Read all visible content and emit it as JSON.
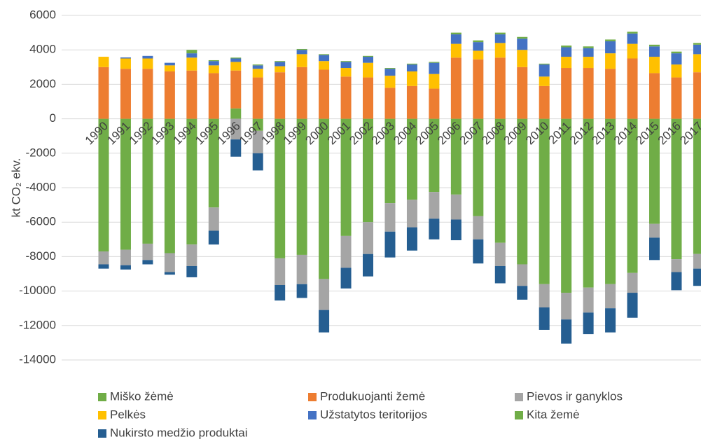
{
  "chart_data": {
    "type": "stacked_bar",
    "y_label": "kt CO₂ ekv.",
    "categories": [
      "1990",
      "1991",
      "1992",
      "1993",
      "1994",
      "1995",
      "1996",
      "1997",
      "1998",
      "1999",
      "2000",
      "2001",
      "2002",
      "2003",
      "2004",
      "2005",
      "2006",
      "2007",
      "2008",
      "2009",
      "2010",
      "2011",
      "2012",
      "2013",
      "2014",
      "2015",
      "2016",
      "2017"
    ],
    "series": [
      {
        "name": "Miško žėmė",
        "color": "#70ad47",
        "values": [
          -7700,
          -7600,
          -7250,
          -7800,
          -7300,
          -5150,
          600,
          -700,
          -8100,
          -7900,
          -9300,
          -6800,
          -6000,
          -4900,
          -4700,
          -4250,
          -4400,
          -5650,
          -7200,
          -8450,
          -9600,
          -10100,
          -9800,
          -9600,
          -8950,
          -6100,
          -8150,
          -7850
        ]
      },
      {
        "name": "Produkuojanti žemė",
        "color": "#ed7d31",
        "values": [
          3000,
          2900,
          2900,
          2750,
          2800,
          2650,
          2200,
          2400,
          2700,
          3000,
          2850,
          2450,
          2400,
          1800,
          1900,
          1750,
          3550,
          3450,
          3550,
          3000,
          1900,
          2950,
          2950,
          2900,
          3500,
          2650,
          2400,
          2700
        ]
      },
      {
        "name": "Pievos ir ganyklos",
        "color": "#a5a5a5",
        "values": [
          -750,
          -900,
          -950,
          -1100,
          -1250,
          -1350,
          -1200,
          -1300,
          -1550,
          -1700,
          -1800,
          -1850,
          -1850,
          -1650,
          -1600,
          -1550,
          -1450,
          -1350,
          -1350,
          -1250,
          -1350,
          -1550,
          -1450,
          -1400,
          -1150,
          -800,
          -750,
          -850
        ]
      },
      {
        "name": "Pelkės",
        "color": "#ffc000",
        "values": [
          600,
          600,
          600,
          350,
          750,
          450,
          500,
          500,
          350,
          750,
          500,
          500,
          850,
          700,
          850,
          850,
          800,
          500,
          850,
          1000,
          550,
          650,
          650,
          900,
          850,
          950,
          750,
          1050
        ]
      },
      {
        "name": "Užstatytos teritorijos",
        "color": "#4472c4",
        "values": [
          0,
          60,
          150,
          150,
          250,
          250,
          200,
          200,
          250,
          250,
          350,
          350,
          350,
          400,
          400,
          650,
          550,
          500,
          500,
          650,
          700,
          550,
          500,
          700,
          600,
          600,
          650,
          550
        ]
      },
      {
        "name": "Kita žemė",
        "color": "#70ad47",
        "values": [
          0,
          0,
          0,
          0,
          200,
          50,
          50,
          50,
          50,
          50,
          50,
          50,
          50,
          50,
          50,
          50,
          100,
          100,
          100,
          100,
          50,
          100,
          100,
          100,
          100,
          100,
          100,
          100
        ]
      },
      {
        "name": "Nukirsto medžio produktai",
        "color": "#255e91",
        "values": [
          -250,
          -250,
          -250,
          -150,
          -650,
          -800,
          -1000,
          -1000,
          -900,
          -800,
          -1300,
          -1200,
          -1300,
          -1500,
          -1350,
          -1200,
          -1200,
          -1400,
          -1000,
          -800,
          -1300,
          -1400,
          -1250,
          -1400,
          -1450,
          -1300,
          -1050,
          -1000
        ]
      }
    ],
    "ylim": [
      -14000,
      6000
    ],
    "yticks": [
      6000,
      4000,
      2000,
      0,
      -2000,
      -4000,
      -6000,
      -8000,
      -10000,
      -12000,
      -14000
    ],
    "grid": true
  }
}
